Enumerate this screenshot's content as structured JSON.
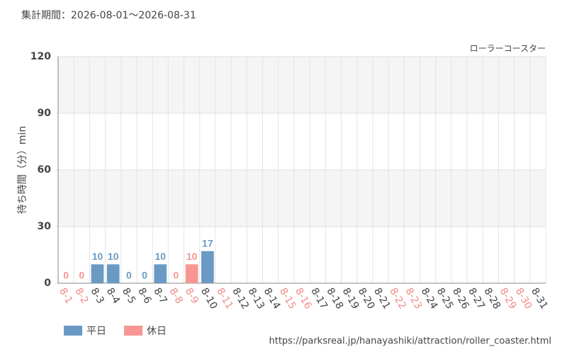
{
  "chart_data": {
    "type": "bar",
    "title": "集計期間：2026-08-01～2026-08-31",
    "subtitle": "ローラーコースター",
    "y_label": "待ち時間（分）min",
    "source": "https://parksreal.jp/hanayashiki/attraction/roller_coaster.html",
    "categories": [
      "8-1",
      "8-2",
      "8-3",
      "8-4",
      "8-5",
      "8-6",
      "8-7",
      "8-8",
      "8-9",
      "8-10",
      "8-11",
      "8-12",
      "8-13",
      "8-14",
      "8-15",
      "8-16",
      "8-17",
      "8-18",
      "8-19",
      "8-20",
      "8-21",
      "8-22",
      "8-23",
      "8-24",
      "8-25",
      "8-26",
      "8-27",
      "8-28",
      "8-29",
      "8-30",
      "8-31"
    ],
    "category_label_colors": [
      "#f08a86",
      "#f08a86",
      "#444",
      "#444",
      "#444",
      "#444",
      "#444",
      "#f08a86",
      "#f08a86",
      "#444",
      "#f08a86",
      "#444",
      "#444",
      "#444",
      "#f08a86",
      "#f08a86",
      "#444",
      "#444",
      "#444",
      "#444",
      "#444",
      "#f08a86",
      "#f08a86",
      "#444",
      "#444",
      "#444",
      "#444",
      "#444",
      "#f08a86",
      "#f08a86",
      "#444"
    ],
    "series": [
      {
        "name": "平日",
        "color": "#6a9ac4",
        "values": [
          null,
          null,
          10,
          10,
          0,
          0,
          10,
          null,
          null,
          17,
          null,
          null,
          null,
          null,
          null,
          null,
          null,
          null,
          null,
          null,
          null,
          null,
          null,
          null,
          null,
          null,
          null,
          null,
          null,
          null,
          null
        ]
      },
      {
        "name": "休日",
        "color": "#f79693",
        "values": [
          0,
          0,
          null,
          null,
          null,
          null,
          null,
          0,
          10,
          null,
          null,
          null,
          null,
          null,
          null,
          null,
          null,
          null,
          null,
          null,
          null,
          null,
          null,
          null,
          null,
          null,
          null,
          null,
          null,
          null,
          null
        ]
      }
    ],
    "ylim": [
      0,
      120
    ],
    "yticks": [
      0,
      30,
      60,
      90,
      120
    ],
    "grid": true
  }
}
